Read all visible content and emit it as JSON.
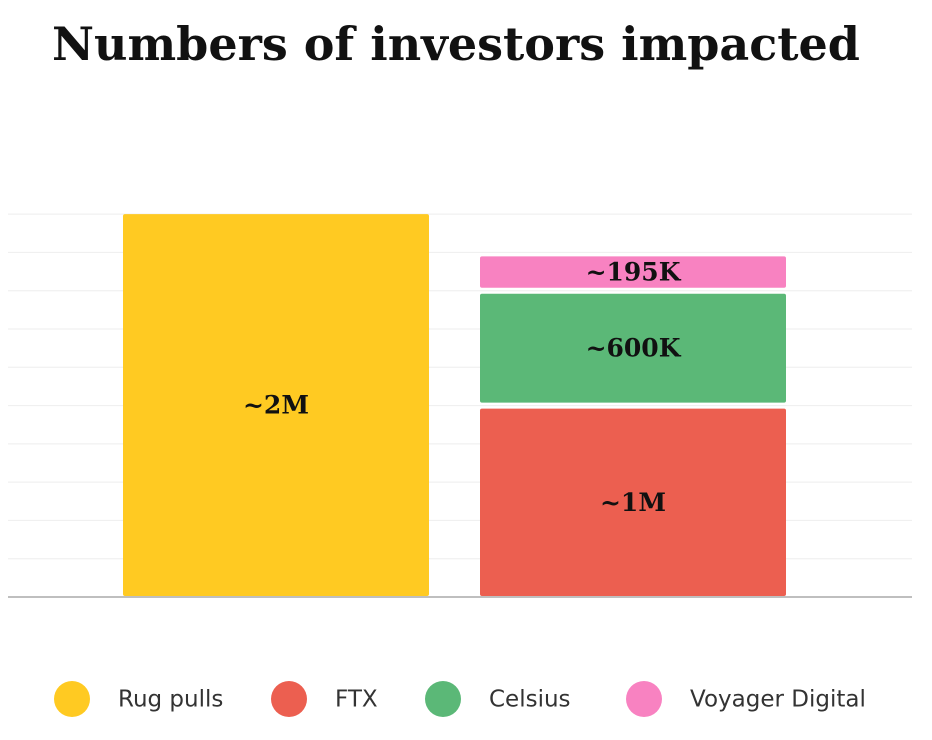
{
  "chart_data": {
    "type": "stacked_bar",
    "title": "Numbers of investors impacted",
    "categories": [
      null,
      null
    ],
    "series": [
      {
        "name": "Rug pulls",
        "color": "#ffca22",
        "values": [
          2000000,
          null
        ],
        "value_labels": [
          "~2M",
          null
        ]
      },
      {
        "name": "FTX",
        "color": "#ec5f50",
        "values": [
          null,
          1000000
        ],
        "value_labels": [
          null,
          "~1M"
        ]
      },
      {
        "name": "Celsius",
        "color": "#5bb877",
        "values": [
          null,
          600000
        ],
        "value_labels": [
          null,
          "~600K"
        ]
      },
      {
        "name": "Voyager Digital",
        "color": "#f882c1",
        "values": [
          null,
          195000
        ],
        "value_labels": [
          null,
          "~195K"
        ]
      }
    ],
    "ylim": [
      0,
      2100000
    ],
    "yticks": [
      0,
      200000,
      400000,
      600000,
      800000,
      1000000,
      1200000,
      1400000,
      1600000,
      1800000,
      2000000
    ],
    "grid": true
  }
}
